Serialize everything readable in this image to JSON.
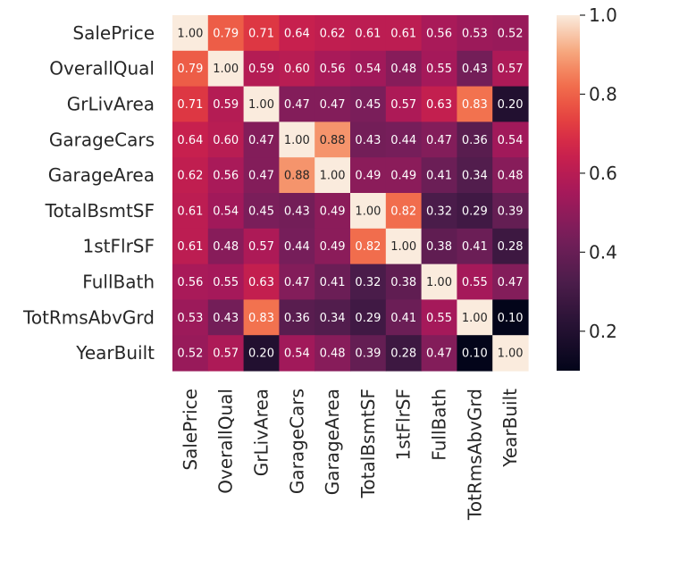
{
  "chart_data": {
    "type": "heatmap",
    "title": "",
    "xlabel": "",
    "ylabel": "",
    "rows": [
      "SalePrice",
      "OverallQual",
      "GrLivArea",
      "GarageCars",
      "GarageArea",
      "TotalBsmtSF",
      "1stFlrSF",
      "FullBath",
      "TotRmsAbvGrd",
      "YearBuilt"
    ],
    "columns": [
      "SalePrice",
      "OverallQual",
      "GrLivArea",
      "GarageCars",
      "GarageArea",
      "TotalBsmtSF",
      "1stFlrSF",
      "FullBath",
      "TotRmsAbvGrd",
      "YearBuilt"
    ],
    "values": [
      [
        1.0,
        0.79,
        0.71,
        0.64,
        0.62,
        0.61,
        0.61,
        0.56,
        0.53,
        0.52
      ],
      [
        0.79,
        1.0,
        0.59,
        0.6,
        0.56,
        0.54,
        0.48,
        0.55,
        0.43,
        0.57
      ],
      [
        0.71,
        0.59,
        1.0,
        0.47,
        0.47,
        0.45,
        0.57,
        0.63,
        0.83,
        0.2
      ],
      [
        0.64,
        0.6,
        0.47,
        1.0,
        0.88,
        0.43,
        0.44,
        0.47,
        0.36,
        0.54
      ],
      [
        0.62,
        0.56,
        0.47,
        0.88,
        1.0,
        0.49,
        0.49,
        0.41,
        0.34,
        0.48
      ],
      [
        0.61,
        0.54,
        0.45,
        0.43,
        0.49,
        1.0,
        0.82,
        0.32,
        0.29,
        0.39
      ],
      [
        0.61,
        0.48,
        0.57,
        0.44,
        0.49,
        0.82,
        1.0,
        0.38,
        0.41,
        0.28
      ],
      [
        0.56,
        0.55,
        0.63,
        0.47,
        0.41,
        0.32,
        0.38,
        1.0,
        0.55,
        0.47
      ],
      [
        0.53,
        0.43,
        0.83,
        0.36,
        0.34,
        0.29,
        0.41,
        0.55,
        1.0,
        0.1
      ],
      [
        0.52,
        0.57,
        0.2,
        0.54,
        0.48,
        0.39,
        0.28,
        0.47,
        0.1,
        1.0
      ]
    ],
    "annotation_format": "0.00",
    "color_scale": {
      "colormap": "rocket",
      "vmin": 0.1,
      "vmax": 1.0
    },
    "colorbar": {
      "ticks": [
        0.2,
        0.4,
        0.6,
        0.8,
        1.0
      ],
      "tick_labels": [
        "0.2",
        "0.4",
        "0.6",
        "0.8",
        "1.0"
      ],
      "placement": "right"
    },
    "grid": false,
    "legend": "none"
  }
}
